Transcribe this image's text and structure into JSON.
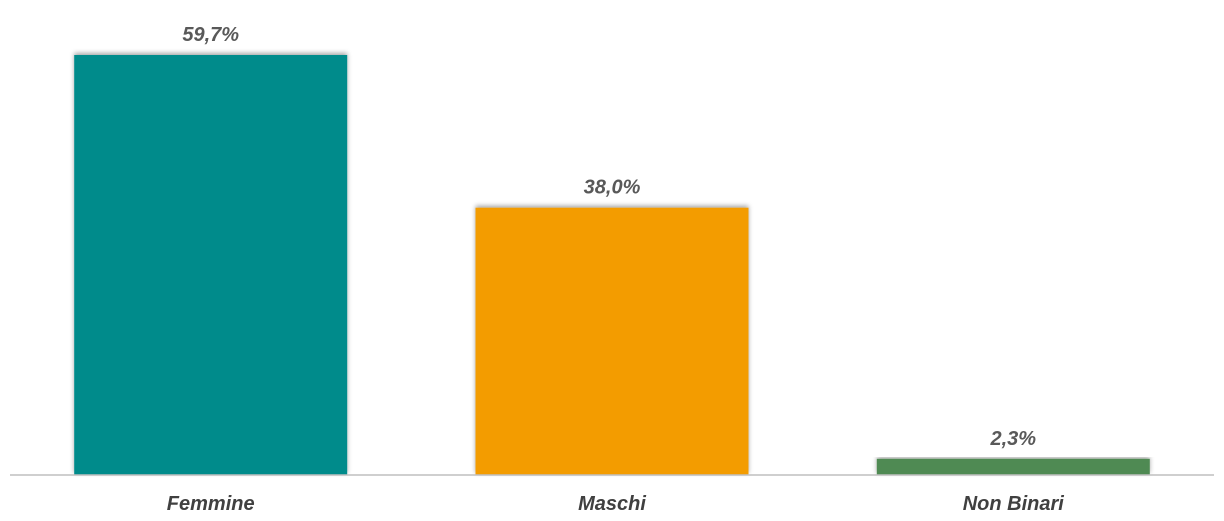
{
  "chart_data": {
    "type": "bar",
    "title": "",
    "xlabel": "",
    "ylabel": "",
    "categories": [
      "Femmine",
      "Maschi",
      "Non Binari"
    ],
    "values": [
      59.7,
      38.0,
      2.3
    ],
    "value_labels": [
      "59,7%",
      "38,0%",
      "2,3%"
    ],
    "colors": [
      "#008b8b",
      "#f39c00",
      "#4f8a52"
    ],
    "ylim": [
      0,
      65
    ],
    "grid": false,
    "legend": "none"
  }
}
